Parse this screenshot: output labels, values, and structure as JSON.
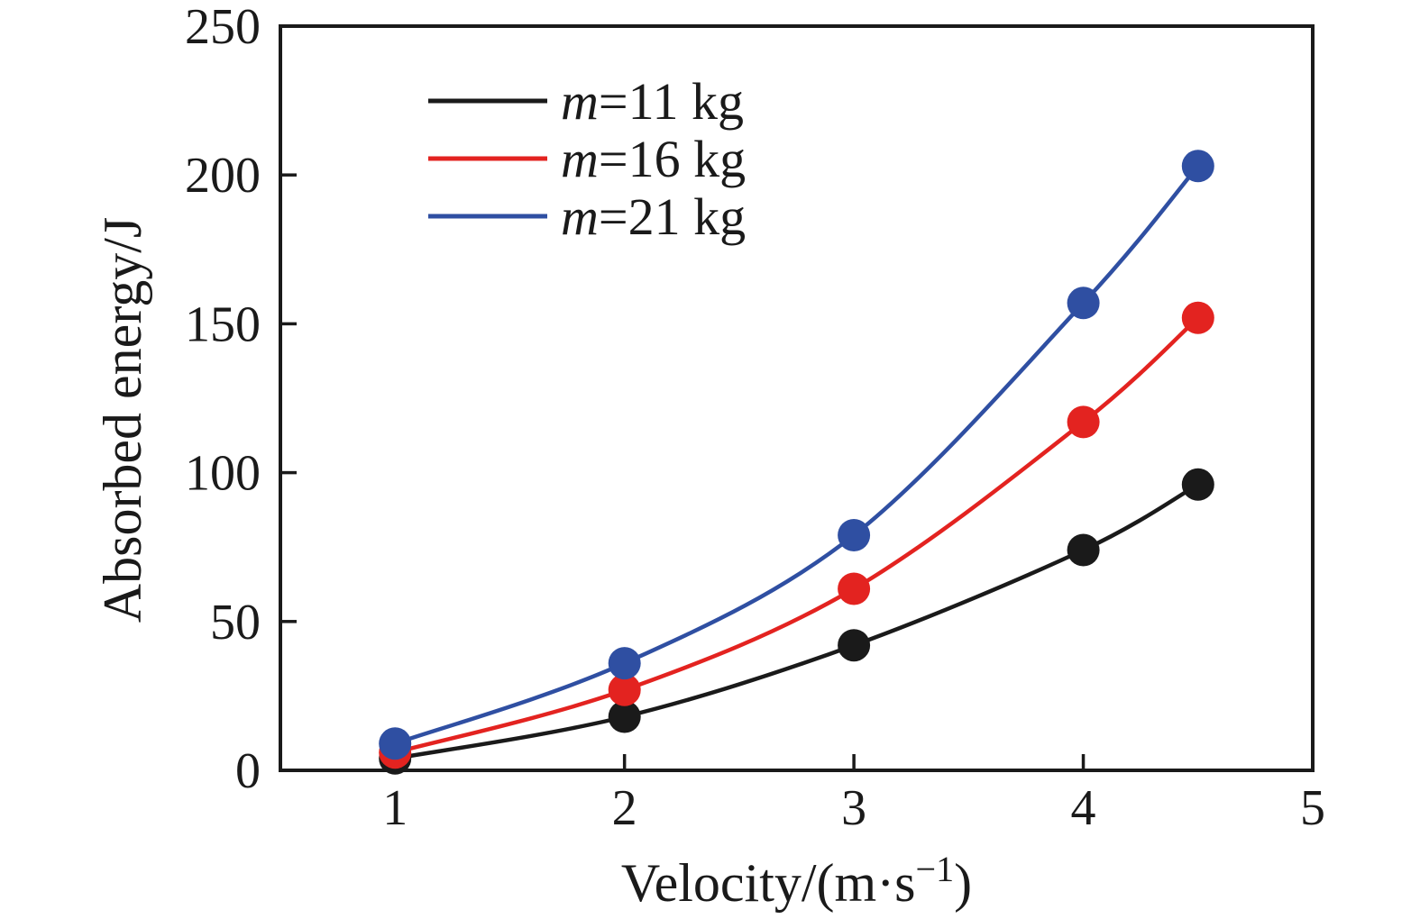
{
  "chart_data": {
    "type": "line",
    "title": "",
    "xlabel": "Velocity/(m·s⁻¹)",
    "xlabel_parts": {
      "pre": "Velocity/(m·s",
      "sup": "−1",
      "post": ")"
    },
    "ylabel": "Absorbed energy/J",
    "x": [
      1,
      2,
      3,
      4,
      4.5
    ],
    "series": [
      {
        "name": "m=11 kg",
        "name_italic": "m",
        "name_rest": "=11 kg",
        "color": "#1a1a1a",
        "values": [
          4,
          18,
          42,
          74,
          96
        ]
      },
      {
        "name": "m=16 kg",
        "name_italic": "m",
        "name_rest": "=16 kg",
        "color": "#e32320",
        "values": [
          6,
          27,
          61,
          117,
          152
        ]
      },
      {
        "name": "m=21 kg",
        "name_italic": "m",
        "name_rest": "=21 kg",
        "color": "#2f4fa2",
        "values": [
          9,
          36,
          79,
          157,
          203
        ]
      }
    ],
    "xlim": [
      0.5,
      5
    ],
    "ylim": [
      0,
      250
    ],
    "xticks": [
      1,
      2,
      3,
      4,
      5
    ],
    "yticks": [
      0,
      50,
      100,
      150,
      200,
      250
    ],
    "grid": false,
    "legend_position": "upper-left-inside",
    "marker": "circle"
  },
  "style": {
    "axis_color": "#1a1a1a",
    "text_color": "#1a1a1a",
    "background": "#ffffff"
  }
}
